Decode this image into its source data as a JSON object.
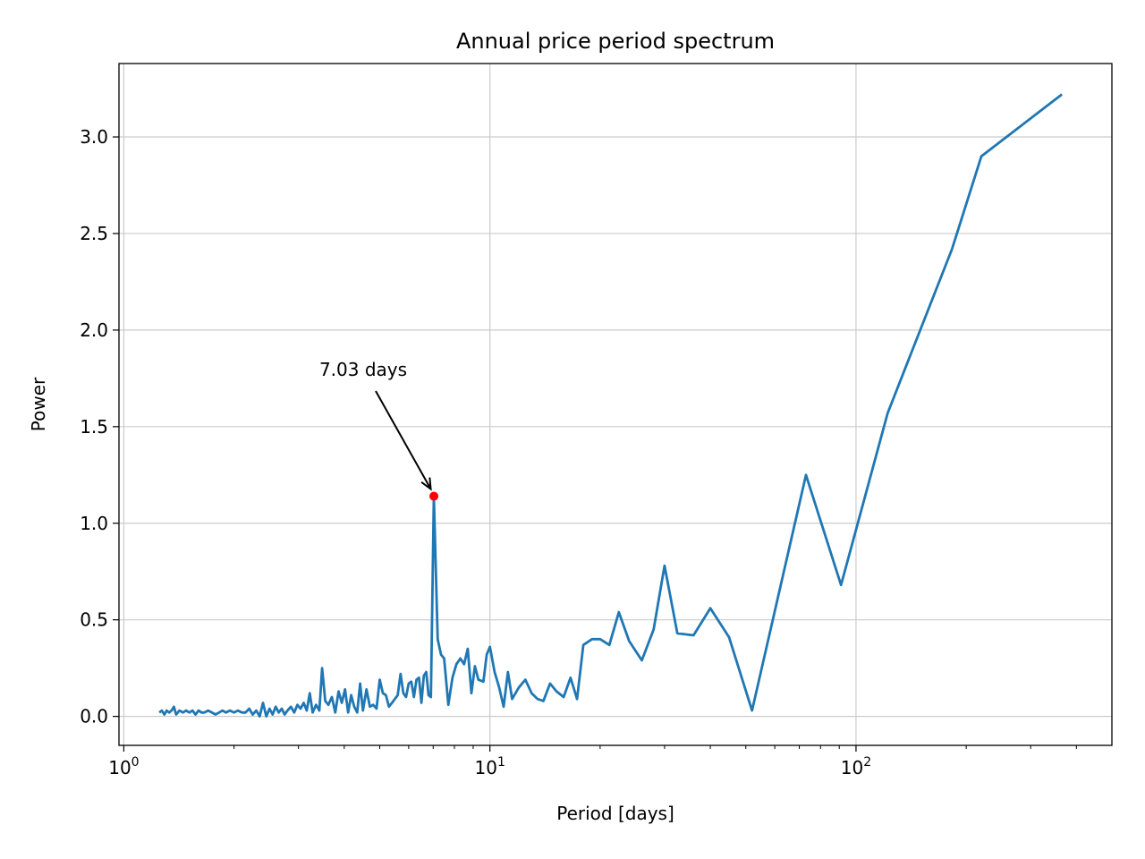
{
  "chart_data": {
    "type": "line",
    "title": "Annual price period spectrum",
    "xlabel": "Period [days]",
    "ylabel": "Power",
    "xscale": "log",
    "xlim": [
      0.97,
      500
    ],
    "ylim": [
      -0.15,
      3.38
    ],
    "grid": true,
    "x_ticks": [
      {
        "value": 1,
        "base": "10",
        "exp": "0"
      },
      {
        "value": 10,
        "base": "10",
        "exp": "1"
      },
      {
        "value": 100,
        "base": "10",
        "exp": "2"
      }
    ],
    "y_ticks": [
      "0.0",
      "0.5",
      "1.0",
      "1.5",
      "2.0",
      "2.5",
      "3.0"
    ],
    "series": [
      {
        "color": "#1f77b4",
        "points": [
          [
            1.25,
            0.02
          ],
          [
            1.27,
            0.03
          ],
          [
            1.29,
            0.01
          ],
          [
            1.31,
            0.03
          ],
          [
            1.33,
            0.02
          ],
          [
            1.35,
            0.03
          ],
          [
            1.37,
            0.05
          ],
          [
            1.39,
            0.01
          ],
          [
            1.42,
            0.03
          ],
          [
            1.45,
            0.02
          ],
          [
            1.48,
            0.03
          ],
          [
            1.51,
            0.02
          ],
          [
            1.54,
            0.03
          ],
          [
            1.57,
            0.01
          ],
          [
            1.6,
            0.03
          ],
          [
            1.63,
            0.02
          ],
          [
            1.66,
            0.02
          ],
          [
            1.7,
            0.03
          ],
          [
            1.74,
            0.02
          ],
          [
            1.78,
            0.01
          ],
          [
            1.82,
            0.02
          ],
          [
            1.86,
            0.03
          ],
          [
            1.9,
            0.02
          ],
          [
            1.95,
            0.03
          ],
          [
            2.0,
            0.02
          ],
          [
            2.05,
            0.03
          ],
          [
            2.1,
            0.02
          ],
          [
            2.15,
            0.02
          ],
          [
            2.2,
            0.04
          ],
          [
            2.25,
            0.01
          ],
          [
            2.3,
            0.03
          ],
          [
            2.35,
            0.0
          ],
          [
            2.4,
            0.07
          ],
          [
            2.45,
            0.0
          ],
          [
            2.5,
            0.04
          ],
          [
            2.55,
            0.01
          ],
          [
            2.6,
            0.05
          ],
          [
            2.65,
            0.02
          ],
          [
            2.7,
            0.04
          ],
          [
            2.75,
            0.01
          ],
          [
            2.8,
            0.03
          ],
          [
            2.86,
            0.05
          ],
          [
            2.92,
            0.02
          ],
          [
            2.98,
            0.06
          ],
          [
            3.04,
            0.04
          ],
          [
            3.1,
            0.07
          ],
          [
            3.16,
            0.03
          ],
          [
            3.22,
            0.12
          ],
          [
            3.28,
            0.02
          ],
          [
            3.35,
            0.06
          ],
          [
            3.42,
            0.03
          ],
          [
            3.48,
            0.25
          ],
          [
            3.55,
            0.08
          ],
          [
            3.62,
            0.06
          ],
          [
            3.7,
            0.1
          ],
          [
            3.78,
            0.02
          ],
          [
            3.86,
            0.13
          ],
          [
            3.94,
            0.07
          ],
          [
            4.02,
            0.14
          ],
          [
            4.1,
            0.02
          ],
          [
            4.18,
            0.11
          ],
          [
            4.26,
            0.05
          ],
          [
            4.34,
            0.02
          ],
          [
            4.42,
            0.17
          ],
          [
            4.5,
            0.03
          ],
          [
            4.6,
            0.14
          ],
          [
            4.7,
            0.05
          ],
          [
            4.8,
            0.06
          ],
          [
            4.9,
            0.04
          ],
          [
            5.0,
            0.19
          ],
          [
            5.1,
            0.12
          ],
          [
            5.2,
            0.11
          ],
          [
            5.3,
            0.05
          ],
          [
            5.4,
            0.07
          ],
          [
            5.5,
            0.09
          ],
          [
            5.6,
            0.11
          ],
          [
            5.7,
            0.22
          ],
          [
            5.8,
            0.12
          ],
          [
            5.9,
            0.1
          ],
          [
            6.0,
            0.17
          ],
          [
            6.1,
            0.18
          ],
          [
            6.2,
            0.1
          ],
          [
            6.3,
            0.19
          ],
          [
            6.4,
            0.2
          ],
          [
            6.5,
            0.07
          ],
          [
            6.6,
            0.21
          ],
          [
            6.7,
            0.23
          ],
          [
            6.8,
            0.11
          ],
          [
            6.9,
            0.1
          ],
          [
            7.03,
            1.14
          ],
          [
            7.2,
            0.4
          ],
          [
            7.35,
            0.32
          ],
          [
            7.5,
            0.3
          ],
          [
            7.7,
            0.06
          ],
          [
            7.9,
            0.2
          ],
          [
            8.1,
            0.27
          ],
          [
            8.3,
            0.3
          ],
          [
            8.5,
            0.27
          ],
          [
            8.7,
            0.35
          ],
          [
            8.9,
            0.12
          ],
          [
            9.1,
            0.26
          ],
          [
            9.3,
            0.19
          ],
          [
            9.6,
            0.18
          ],
          [
            9.8,
            0.32
          ],
          [
            10.0,
            0.36
          ],
          [
            10.3,
            0.23
          ],
          [
            10.6,
            0.15
          ],
          [
            10.9,
            0.05
          ],
          [
            11.2,
            0.23
          ],
          [
            11.5,
            0.09
          ],
          [
            12.0,
            0.15
          ],
          [
            12.5,
            0.19
          ],
          [
            13.0,
            0.12
          ],
          [
            13.5,
            0.09
          ],
          [
            14.0,
            0.08
          ],
          [
            14.6,
            0.17
          ],
          [
            15.2,
            0.13
          ],
          [
            15.9,
            0.1
          ],
          [
            16.6,
            0.2
          ],
          [
            17.3,
            0.09
          ],
          [
            18.0,
            0.37
          ],
          [
            19.0,
            0.4
          ],
          [
            20.0,
            0.4
          ],
          [
            21.2,
            0.37
          ],
          [
            22.5,
            0.54
          ],
          [
            24.0,
            0.39
          ],
          [
            26.0,
            0.29
          ],
          [
            28.0,
            0.45
          ],
          [
            30.0,
            0.78
          ],
          [
            32.5,
            0.43
          ],
          [
            36.0,
            0.42
          ],
          [
            40.0,
            0.56
          ],
          [
            45.0,
            0.41
          ],
          [
            52.0,
            0.03
          ],
          [
            73.0,
            1.25
          ],
          [
            91.0,
            0.68
          ],
          [
            122.0,
            1.57
          ],
          [
            183.0,
            2.42
          ],
          [
            220.0,
            2.9
          ],
          [
            365.0,
            3.22
          ]
        ]
      }
    ],
    "peak": {
      "x": 7.03,
      "y": 1.14,
      "color": "#ff0000"
    },
    "annotation": {
      "text": "7.03 days",
      "x": 7.03,
      "y": 1.14
    }
  }
}
